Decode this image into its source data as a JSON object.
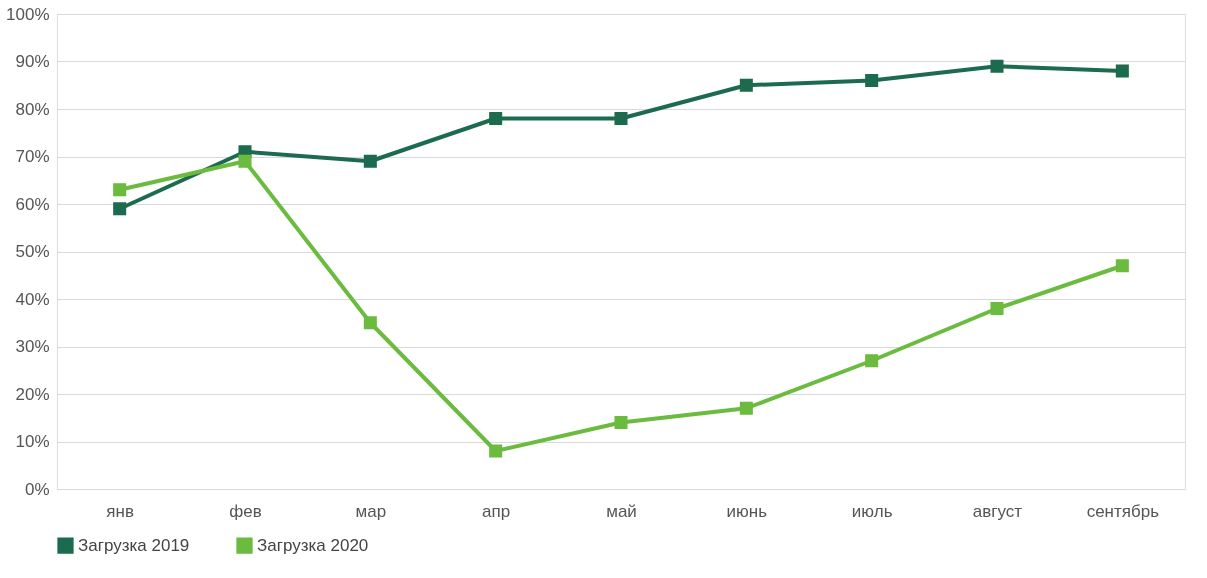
{
  "chart_data": {
    "type": "line",
    "categories": [
      "янв",
      "фев",
      "мар",
      "апр",
      "май",
      "июнь",
      "июль",
      "август",
      "сентябрь"
    ],
    "series": [
      {
        "name": "Загрузка 2019",
        "color": "#1d6b4e",
        "values": [
          59,
          71,
          69,
          78,
          78,
          85,
          86,
          89,
          88
        ]
      },
      {
        "name": "Загрузка 2020",
        "color": "#6abb3e",
        "values": [
          63,
          69,
          35,
          8,
          14,
          17,
          27,
          38,
          47
        ]
      }
    ],
    "ylim": [
      0,
      100
    ],
    "yticks": [
      {
        "value": 0,
        "label": "0%"
      },
      {
        "value": 10,
        "label": "10%"
      },
      {
        "value": 20,
        "label": "20%"
      },
      {
        "value": 30,
        "label": "30%"
      },
      {
        "value": 40,
        "label": "40%"
      },
      {
        "value": 50,
        "label": "50%"
      },
      {
        "value": 60,
        "label": "60%"
      },
      {
        "value": 70,
        "label": "70%"
      },
      {
        "value": 80,
        "label": "80%"
      },
      {
        "value": 90,
        "label": "90%"
      },
      {
        "value": 100,
        "label": "100%"
      }
    ],
    "grid": "y",
    "legend": "bottom",
    "marker": "square",
    "line_style": "solid"
  }
}
